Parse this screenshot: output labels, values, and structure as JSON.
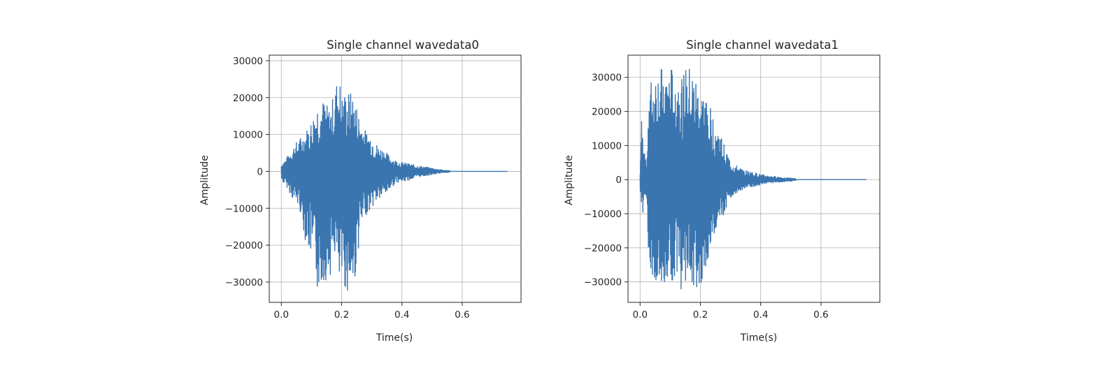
{
  "chart_data": [
    {
      "type": "line",
      "title": "Single channel wavedata0",
      "xlabel": "Time(s)",
      "ylabel": "Amplitude",
      "xlim": [
        -0.04,
        0.795
      ],
      "ylim": [
        -35500,
        31500
      ],
      "xticks": [
        0.0,
        0.2,
        0.4,
        0.6
      ],
      "xtick_labels": [
        "0.0",
        "0.2",
        "0.4",
        "0.6"
      ],
      "yticks": [
        -30000,
        -20000,
        -10000,
        0,
        10000,
        20000,
        30000
      ],
      "ytick_labels": [
        "−30000",
        "−20000",
        "−10000",
        "0",
        "10000",
        "20000",
        "30000"
      ],
      "grid": true,
      "line_color": "#3a75b0",
      "series": [
        {
          "x": [
            0.0,
            0.02,
            0.04,
            0.06,
            0.08,
            0.1,
            0.12,
            0.14,
            0.16,
            0.18,
            0.19,
            0.2,
            0.22,
            0.24,
            0.26,
            0.28,
            0.3,
            0.32,
            0.34,
            0.36,
            0.38,
            0.4,
            0.42,
            0.44,
            0.46,
            0.48,
            0.5,
            0.52,
            0.54,
            0.6,
            0.7,
            0.75
          ],
          "y_upper": [
            2000,
            4000,
            7000,
            9000,
            11000,
            14000,
            19000,
            19500,
            17000,
            23000,
            28000,
            21000,
            22000,
            21000,
            15000,
            11000,
            10000,
            7000,
            6000,
            4000,
            3000,
            2500,
            2200,
            1800,
            1500,
            1200,
            900,
            600,
            300,
            150,
            100,
            100
          ],
          "y_lower": [
            -2500,
            -4500,
            -8000,
            -10000,
            -19000,
            -24000,
            -33000,
            -30000,
            -29000,
            -22000,
            -33000,
            -31000,
            -33000,
            -33000,
            -18000,
            -12000,
            -10000,
            -8000,
            -7000,
            -5000,
            -3000,
            -3000,
            -2500,
            -2000,
            -1500,
            -1200,
            -900,
            -600,
            -300,
            -150,
            -100,
            -100
          ]
        }
      ]
    },
    {
      "type": "line",
      "title": "Single channel wavedata1",
      "xlabel": "Time(s)",
      "ylabel": "Amplitude",
      "xlim": [
        -0.04,
        0.795
      ],
      "ylim": [
        -36000,
        36500
      ],
      "xticks": [
        0.0,
        0.2,
        0.4,
        0.6
      ],
      "xtick_labels": [
        "0.0",
        "0.2",
        "0.4",
        "0.6"
      ],
      "yticks": [
        -30000,
        -20000,
        -10000,
        0,
        10000,
        20000,
        30000
      ],
      "ytick_labels": [
        "−30000",
        "−20000",
        "−10000",
        "0",
        "10000",
        "20000",
        "30000"
      ],
      "grid": true,
      "line_color": "#3a75b0",
      "series": [
        {
          "x": [
            0.0,
            0.005,
            0.01,
            0.02,
            0.03,
            0.04,
            0.06,
            0.08,
            0.1,
            0.12,
            0.14,
            0.16,
            0.18,
            0.2,
            0.22,
            0.24,
            0.26,
            0.28,
            0.3,
            0.32,
            0.34,
            0.36,
            0.38,
            0.4,
            0.42,
            0.44,
            0.46,
            0.48,
            0.5,
            0.52,
            0.6,
            0.7,
            0.75
          ],
          "y_upper": [
            4000,
            17500,
            11000,
            6000,
            28000,
            30000,
            33000,
            32000,
            33000,
            32000,
            31000,
            33000,
            31000,
            26000,
            25000,
            19000,
            15000,
            10000,
            5500,
            4000,
            3000,
            2500,
            2000,
            1500,
            1200,
            1000,
            800,
            600,
            500,
            200,
            100,
            100,
            100
          ],
          "y_lower": [
            -4000,
            -13000,
            -9000,
            -6000,
            -27000,
            -30000,
            -29000,
            -33000,
            -29000,
            -31000,
            -33000,
            -33000,
            -33000,
            -31000,
            -26000,
            -19000,
            -14000,
            -10000,
            -5500,
            -4000,
            -3000,
            -2500,
            -2000,
            -1500,
            -1200,
            -1000,
            -800,
            -600,
            -500,
            -200,
            -100,
            -100,
            -100
          ]
        }
      ]
    }
  ]
}
